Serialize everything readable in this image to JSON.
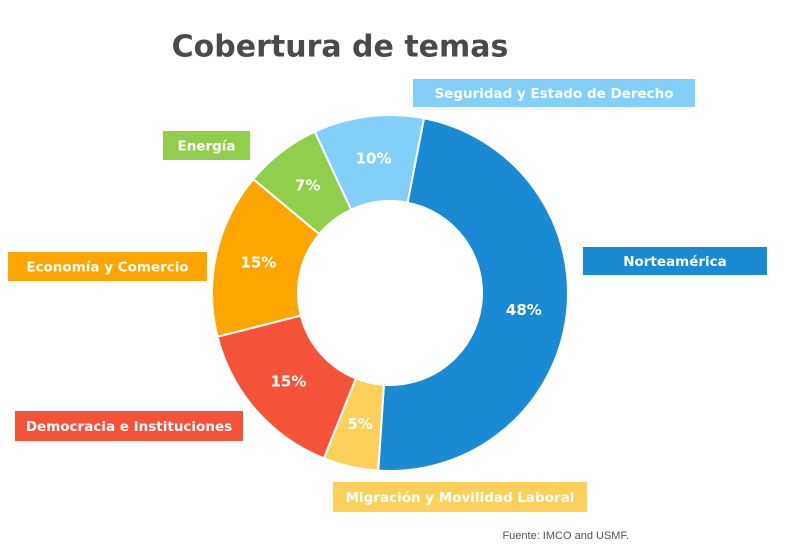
{
  "chart_data": {
    "type": "pie",
    "title": "Cobertura de temas",
    "source": "Fuente: IMCO and USMF.",
    "categories": [
      "Norteamérica",
      "Migración y Movilidad Laboral",
      "Democracia e Instituciones",
      "Economía y Comercio",
      "Energía",
      "Seguridad y Estado de Derecho"
    ],
    "values": [
      48,
      5,
      15,
      15,
      7,
      10
    ],
    "value_labels": [
      "48%",
      "5%",
      "15%",
      "15%",
      "7%",
      "10%"
    ],
    "colors": [
      "#1a8ad4",
      "#fdd05a",
      "#f5523a",
      "#ffa500",
      "#8fcf4c",
      "#82cffa"
    ]
  }
}
